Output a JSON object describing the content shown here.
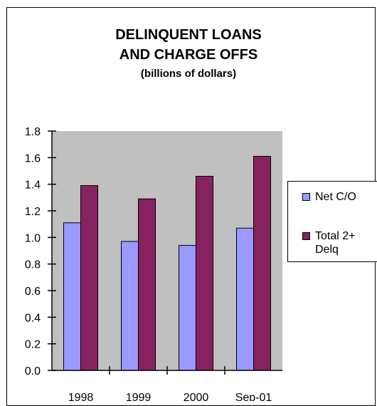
{
  "chart_data": {
    "type": "bar",
    "title": "DELINQUENT LOANS",
    "title_line2": "AND CHARGE OFFS",
    "subtitle": "(billions of dollars)",
    "categories": [
      "1998",
      "1999",
      "2000",
      "Sep-01"
    ],
    "series": [
      {
        "name": "Net C/O",
        "values": [
          1.11,
          0.97,
          0.94,
          1.07
        ],
        "color": "#9999ff"
      },
      {
        "name": "Total 2+ Delq",
        "values": [
          1.39,
          1.29,
          1.46,
          1.61
        ],
        "color": "#862260"
      }
    ],
    "ylim": [
      0,
      1.8
    ],
    "yticks": [
      "0.0",
      "0.2",
      "0.4",
      "0.6",
      "0.8",
      "1.0",
      "1.2",
      "1.4",
      "1.6",
      "1.8"
    ],
    "plot_background": "#c0c0c0",
    "grid": false,
    "legend_position": "right"
  }
}
